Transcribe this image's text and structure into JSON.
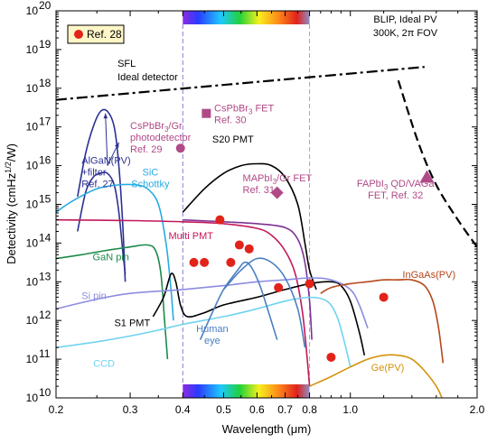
{
  "chart_data": {
    "type": "line",
    "xlabel": "Wavelength (μm)",
    "ylabel": "Detectivity (cmHz",
    "ylabel_sup": "1/2",
    "ylabel_end": "/W)",
    "x_scale": "log",
    "y_scale": "log",
    "xlim": [
      0.2,
      2.0
    ],
    "ylim_exp": [
      10,
      20
    ],
    "x_ticks": [
      {
        "v": 0.2,
        "label": "0.2"
      },
      {
        "v": 0.3,
        "label": "0.3"
      },
      {
        "v": 0.4,
        "label": "0.4"
      },
      {
        "v": 0.5,
        "label": "0.5"
      },
      {
        "v": 0.6,
        "label": "0.6"
      },
      {
        "v": 0.7,
        "label": "0.7"
      },
      {
        "v": 0.8,
        "label": "0.8"
      },
      {
        "v": 1.0,
        "label": "1.0"
      },
      {
        "v": 2.0,
        "label": "2.0"
      }
    ],
    "y_ticks": [
      {
        "e": 10,
        "label": "10"
      },
      {
        "e": 11,
        "label": "10"
      },
      {
        "e": 12,
        "label": "10"
      },
      {
        "e": 13,
        "label": "10"
      },
      {
        "e": 14,
        "label": "10"
      },
      {
        "e": 15,
        "label": "10"
      },
      {
        "e": 16,
        "label": "10"
      },
      {
        "e": 17,
        "label": "10"
      },
      {
        "e": 18,
        "label": "10"
      },
      {
        "e": 19,
        "label": "10"
      },
      {
        "e": 20,
        "label": "10"
      }
    ],
    "visible_band": [
      0.4,
      0.8
    ],
    "series": [
      {
        "name": "SFL Ideal detector",
        "color": "#000000",
        "dash": "dashdot",
        "points": [
          [
            0.2,
            17.7
          ],
          [
            1.5,
            18.55
          ]
        ]
      },
      {
        "name": "BLIP, Ideal PV 300K, 2π FOV",
        "color": "#000000",
        "dash": "dash",
        "points": [
          [
            1.3,
            18.2
          ],
          [
            1.45,
            16.6
          ],
          [
            1.6,
            15.5
          ],
          [
            1.8,
            14.6
          ],
          [
            2.0,
            13.9
          ]
        ]
      },
      {
        "name": "AlGaN(PV)",
        "color": "#2e3192",
        "points": [
          [
            0.225,
            15.2
          ],
          [
            0.235,
            16.3
          ],
          [
            0.245,
            17.0
          ],
          [
            0.255,
            17.4
          ],
          [
            0.265,
            17.4
          ],
          [
            0.275,
            17.0
          ],
          [
            0.282,
            16.0
          ],
          [
            0.288,
            14.5
          ],
          [
            0.292,
            13.0
          ]
        ]
      },
      {
        "name": "AlGaN(PV)+filter",
        "color": "#2e3192",
        "points": [
          [
            0.225,
            14.3
          ],
          [
            0.235,
            15.3
          ],
          [
            0.245,
            15.7
          ],
          [
            0.255,
            15.8
          ],
          [
            0.265,
            15.8
          ],
          [
            0.275,
            15.5
          ],
          [
            0.282,
            14.8
          ],
          [
            0.288,
            13.8
          ],
          [
            0.292,
            13.2
          ]
        ]
      },
      {
        "name": "SiC Schottky",
        "color": "#29abe2",
        "points": [
          [
            0.2,
            14.8
          ],
          [
            0.22,
            15.1
          ],
          [
            0.25,
            15.4
          ],
          [
            0.28,
            15.5
          ],
          [
            0.31,
            15.5
          ],
          [
            0.33,
            15.4
          ],
          [
            0.35,
            15.0
          ],
          [
            0.365,
            14.0
          ],
          [
            0.375,
            12.8
          ],
          [
            0.38,
            12.0
          ]
        ]
      },
      {
        "name": "GaN pin",
        "color": "#1b8a4a",
        "points": [
          [
            0.2,
            13.6
          ],
          [
            0.23,
            13.7
          ],
          [
            0.26,
            13.8
          ],
          [
            0.3,
            13.9
          ],
          [
            0.33,
            13.95
          ],
          [
            0.345,
            13.8
          ],
          [
            0.355,
            13.2
          ],
          [
            0.362,
            12.0
          ],
          [
            0.368,
            11.0
          ]
        ]
      },
      {
        "name": "Multi PMT",
        "color": "#c2185b",
        "points": [
          [
            0.2,
            14.6
          ],
          [
            0.3,
            14.58
          ],
          [
            0.4,
            14.55
          ],
          [
            0.5,
            14.5
          ],
          [
            0.6,
            14.38
          ],
          [
            0.65,
            14.2
          ],
          [
            0.7,
            13.8
          ],
          [
            0.74,
            13.2
          ],
          [
            0.77,
            12.2
          ],
          [
            0.79,
            11.0
          ],
          [
            0.8,
            10.3
          ]
        ]
      },
      {
        "name": "Multi PMT 2",
        "color": "#7b3294",
        "points": [
          [
            0.4,
            14.6
          ],
          [
            0.5,
            14.55
          ],
          [
            0.6,
            14.5
          ],
          [
            0.7,
            14.4
          ],
          [
            0.75,
            14.1
          ],
          [
            0.78,
            13.5
          ],
          [
            0.8,
            12.5
          ],
          [
            0.81,
            11.5
          ]
        ]
      },
      {
        "name": "S20 PMT",
        "color": "#000000",
        "points": [
          [
            0.4,
            14.8
          ],
          [
            0.45,
            15.4
          ],
          [
            0.5,
            15.8
          ],
          [
            0.55,
            16.0
          ],
          [
            0.6,
            16.05
          ],
          [
            0.65,
            16.0
          ],
          [
            0.7,
            15.7
          ],
          [
            0.75,
            15.0
          ],
          [
            0.78,
            14.0
          ],
          [
            0.8,
            13.3
          ],
          [
            0.83,
            12.8
          ]
        ]
      },
      {
        "name": "S1 PMT",
        "color": "#000000",
        "points": [
          [
            0.34,
            12.1
          ],
          [
            0.36,
            12.6
          ],
          [
            0.375,
            13.2
          ],
          [
            0.385,
            13.0
          ],
          [
            0.395,
            12.4
          ],
          [
            0.41,
            12.1
          ],
          [
            0.45,
            12.2
          ],
          [
            0.5,
            12.4
          ],
          [
            0.6,
            12.6
          ],
          [
            0.7,
            12.8
          ],
          [
            0.8,
            12.95
          ],
          [
            0.9,
            13.0
          ],
          [
            0.95,
            12.9
          ],
          [
            1.0,
            12.5
          ],
          [
            1.05,
            11.7
          ],
          [
            1.08,
            11.1
          ]
        ]
      },
      {
        "name": "Si pin",
        "color": "#8c8ce0",
        "points": [
          [
            0.2,
            12.3
          ],
          [
            0.25,
            12.55
          ],
          [
            0.3,
            12.7
          ],
          [
            0.4,
            12.8
          ],
          [
            0.5,
            12.9
          ],
          [
            0.6,
            13.0
          ],
          [
            0.7,
            13.05
          ],
          [
            0.8,
            13.1
          ],
          [
            0.9,
            13.05
          ],
          [
            1.0,
            12.8
          ],
          [
            1.05,
            12.4
          ],
          [
            1.1,
            11.8
          ]
        ]
      },
      {
        "name": "CCD",
        "color": "#6fd3f0",
        "points": [
          [
            0.2,
            11.3
          ],
          [
            0.25,
            11.45
          ],
          [
            0.3,
            11.6
          ],
          [
            0.35,
            11.75
          ],
          [
            0.4,
            11.9
          ],
          [
            0.5,
            12.1
          ],
          [
            0.6,
            12.3
          ],
          [
            0.7,
            12.5
          ],
          [
            0.8,
            12.6
          ],
          [
            0.88,
            12.5
          ],
          [
            0.93,
            12.1
          ],
          [
            0.97,
            11.4
          ],
          [
            1.0,
            10.8
          ]
        ]
      },
      {
        "name": "Human eye",
        "color": "#4a7fc1",
        "points": [
          [
            0.44,
            11.5
          ],
          [
            0.47,
            12.2
          ],
          [
            0.5,
            12.8
          ],
          [
            0.54,
            13.3
          ],
          [
            0.56,
            13.5
          ],
          [
            0.58,
            13.4
          ],
          [
            0.61,
            12.9
          ],
          [
            0.64,
            12.2
          ],
          [
            0.67,
            11.5
          ]
        ]
      },
      {
        "name": "Human eye 2",
        "color": "#4a7fc1",
        "points": [
          [
            0.5,
            12.8
          ],
          [
            0.55,
            13.3
          ],
          [
            0.6,
            13.6
          ],
          [
            0.65,
            13.5
          ],
          [
            0.7,
            13.1
          ],
          [
            0.75,
            12.3
          ],
          [
            0.78,
            11.3
          ]
        ]
      },
      {
        "name": "InGaAs(PV)",
        "color": "#b5471b",
        "points": [
          [
            0.85,
            12.7
          ],
          [
            0.9,
            12.85
          ],
          [
            1.0,
            12.95
          ],
          [
            1.1,
            13.0
          ],
          [
            1.2,
            13.05
          ],
          [
            1.3,
            13.05
          ],
          [
            1.4,
            13.05
          ],
          [
            1.5,
            12.9
          ],
          [
            1.57,
            12.5
          ],
          [
            1.62,
            11.8
          ],
          [
            1.66,
            10.9
          ]
        ]
      },
      {
        "name": "Ge(PV)",
        "color": "#d4920a",
        "points": [
          [
            0.8,
            10.3
          ],
          [
            0.9,
            10.55
          ],
          [
            1.0,
            10.8
          ],
          [
            1.1,
            11.0
          ],
          [
            1.2,
            11.1
          ],
          [
            1.3,
            11.1
          ],
          [
            1.4,
            11.0
          ],
          [
            1.5,
            10.7
          ],
          [
            1.6,
            10.3
          ],
          [
            1.65,
            10.0
          ]
        ]
      }
    ],
    "ref28_points": [
      [
        0.49,
        14.6
      ],
      [
        0.425,
        13.5
      ],
      [
        0.45,
        13.5
      ],
      [
        0.52,
        13.5
      ],
      [
        0.545,
        13.95
      ],
      [
        0.575,
        13.85
      ],
      [
        0.675,
        12.85
      ],
      [
        0.8,
        12.95
      ],
      [
        0.9,
        11.05
      ],
      [
        1.2,
        12.6
      ]
    ],
    "special_markers": [
      {
        "shape": "square",
        "x": 0.455,
        "y": 17.35,
        "color": "#b04a86"
      },
      {
        "shape": "circle",
        "x": 0.395,
        "y": 16.45,
        "color": "#b04a86"
      },
      {
        "shape": "diamond",
        "x": 0.67,
        "y": 15.3,
        "color": "#b04a86"
      },
      {
        "shape": "triangle",
        "x": 1.52,
        "y": 15.7,
        "color": "#b04a86"
      }
    ],
    "legend": {
      "label": "Ref. 28",
      "position": "top-left"
    },
    "annotations": [
      {
        "lines": [
          "BLIP, Ideal PV",
          "300K, 2π FOV"
        ],
        "color": "#000000",
        "x": 1.35,
        "y": 19.7,
        "anchor": "middle",
        "size": 13
      },
      {
        "lines": [
          "SFL",
          "Ideal detector"
        ],
        "color": "#000000",
        "x": 0.28,
        "y": 18.55,
        "anchor": "start",
        "size": 13
      },
      {
        "lines": [
          "AlGaN(PV)",
          "+filter",
          "Ref. 27"
        ],
        "color": "#2e3192",
        "x": 0.23,
        "y": 16.05,
        "anchor": "start",
        "size": 11
      },
      {
        "lines": [
          "SiC",
          "Schottky"
        ],
        "color": "#29abe2",
        "x": 0.335,
        "y": 15.75,
        "anchor": "middle",
        "size": 11
      },
      {
        "lines": [
          "GaN pin"
        ],
        "color": "#1b8a4a",
        "x": 0.27,
        "y": 13.55,
        "anchor": "middle",
        "size": 11
      },
      {
        "lines": [
          "Si pin"
        ],
        "color": "#8c8ce0",
        "x": 0.23,
        "y": 12.55,
        "anchor": "start",
        "size": 11
      },
      {
        "lines": [
          "S1 PMT"
        ],
        "color": "#000000",
        "x": 0.275,
        "y": 11.85,
        "anchor": "start",
        "size": 11
      },
      {
        "lines": [
          "CCD"
        ],
        "color": "#6fd3f0",
        "x": 0.26,
        "y": 10.8,
        "anchor": "middle",
        "size": 11
      },
      {
        "lines": [
          "Multi PMT"
        ],
        "color": "#c2185b",
        "x": 0.37,
        "y": 14.1,
        "anchor": "start",
        "size": 11
      },
      {
        "lines": [
          "S20 PMT"
        ],
        "color": "#000000",
        "x": 0.47,
        "y": 16.6,
        "anchor": "start",
        "size": 11
      },
      {
        "lines": [
          "Human",
          "eye"
        ],
        "color": "#4a7fc1",
        "x": 0.47,
        "y": 11.7,
        "anchor": "middle",
        "size": 11
      },
      {
        "lines": [
          "InGaAs(PV)"
        ],
        "color": "#b5471b",
        "x": 1.33,
        "y": 13.1,
        "anchor": "start",
        "size": 11
      },
      {
        "lines": [
          "Ge(PV)"
        ],
        "color": "#d4920a",
        "x": 1.12,
        "y": 10.7,
        "anchor": "start",
        "size": 11
      },
      {
        "lines": [
          "CsPbBr",
          "Ref. 30"
        ],
        "sub": [
          "3",
          ""
        ],
        "suffix": [
          " FET",
          ""
        ],
        "color": "#b04a86",
        "x": 0.475,
        "y": 17.4,
        "anchor": "start",
        "size": 11
      },
      {
        "lines": [
          "CsPbBr",
          "photodetector",
          "Ref. 29"
        ],
        "sub": [
          "3",
          "",
          ""
        ],
        "suffix": [
          "/Gr",
          "",
          ""
        ],
        "color": "#b04a86",
        "x": 0.3,
        "y": 16.95,
        "anchor": "start",
        "size": 11
      },
      {
        "lines": [
          "MAPbI",
          "Ref. 31"
        ],
        "sub": [
          "3",
          ""
        ],
        "suffix": [
          "/Gr FET",
          ""
        ],
        "color": "#b04a86",
        "x": 0.555,
        "y": 15.6,
        "anchor": "start",
        "size": 11
      },
      {
        "lines": [
          "FAPbI",
          "FET, Ref. 32"
        ],
        "sub": [
          "3",
          ""
        ],
        "suffix": [
          " QD/VAGa",
          ""
        ],
        "color": "#b04a86",
        "x": 1.28,
        "y": 15.45,
        "anchor": "middle",
        "size": 11
      }
    ],
    "arrows": [
      {
        "from": [
          0.265,
          16.0
        ],
        "to": [
          0.262,
          17.35
        ],
        "color": "#2e3192"
      },
      {
        "from": [
          0.265,
          16.0
        ],
        "to": [
          0.282,
          16.6
        ],
        "color": "#2e3192"
      }
    ]
  }
}
